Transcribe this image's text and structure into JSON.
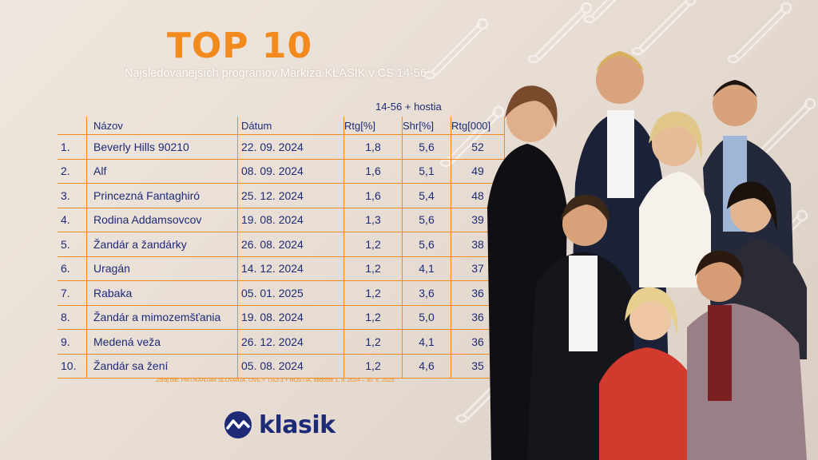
{
  "header": {
    "title": "TOP 10",
    "subtitle": "Najsledovanejších programov Markíza KLASIK v CS 14-56",
    "group_label": "14-56 + hostia"
  },
  "table": {
    "columns": [
      "Názov",
      "Dátum",
      "Rtg[%]",
      "Shr[%]",
      "Rtg[000]"
    ],
    "rows": [
      {
        "rank": "1.",
        "title": "Beverly Hills 90210",
        "date": "22. 09. 2024",
        "rtg": "1,8",
        "shr": "5,6",
        "rtg000": "52"
      },
      {
        "rank": "2.",
        "title": "Alf",
        "date": "08. 09. 2024",
        "rtg": "1,6",
        "shr": "5,1",
        "rtg000": "49"
      },
      {
        "rank": "3.",
        "title": "Princezná Fantaghiró",
        "date": "25. 12. 2024",
        "rtg": "1,6",
        "shr": "5,4",
        "rtg000": "48"
      },
      {
        "rank": "4.",
        "title": "Rodina Addamsovcov",
        "date": "19. 08. 2024",
        "rtg": "1,3",
        "shr": "5,6",
        "rtg000": "39"
      },
      {
        "rank": "5.",
        "title": "Žandár a žandárky",
        "date": "26. 08. 2024",
        "rtg": "1,2",
        "shr": "5,6",
        "rtg000": "38"
      },
      {
        "rank": "6.",
        "title": "Uragán",
        "date": "14. 12. 2024",
        "rtg": "1,2",
        "shr": "4,1",
        "rtg000": "37"
      },
      {
        "rank": "7.",
        "title": "Rabaka",
        "date": "05. 01. 2025",
        "rtg": "1,2",
        "shr": "3,6",
        "rtg000": "36"
      },
      {
        "rank": "8.",
        "title": "Žandár a mimozemšťania",
        "date": "19. 08. 2024",
        "rtg": "1,2",
        "shr": "5,0",
        "rtg000": "36"
      },
      {
        "rank": "9.",
        "title": "Medená veža",
        "date": "26. 12. 2024",
        "rtg": "1,2",
        "shr": "4,1",
        "rtg000": "36"
      },
      {
        "rank": "10.",
        "title": "Žandár sa žení",
        "date": "05. 08. 2024",
        "rtg": "1,2",
        "shr": "4,6",
        "rtg000": "35"
      }
    ]
  },
  "source": "Zdroj dát: PMT/KANTAR SLOVAKIA, LIVE + TSO-3 + HOSTIA, obdobie 1. 8. 2024 – 30. 6. 2025",
  "logo": {
    "text": "klasik",
    "icon": "klasik-logo-icon"
  },
  "colors": {
    "accent": "#f28a1d",
    "text": "#1d2a78"
  }
}
